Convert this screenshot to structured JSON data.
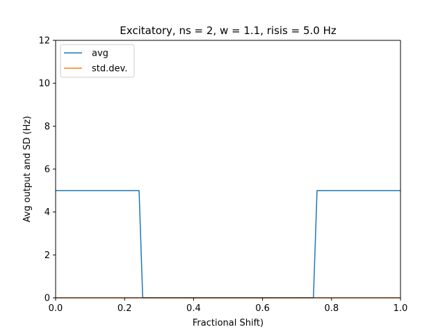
{
  "chart_data": {
    "type": "line",
    "title": "Excitatory, ns = 2, w = 1.1, risis = 5.0 Hz",
    "xlabel": "Fractional Shift)",
    "ylabel": "Avg output and SD (Hz)",
    "xlim": [
      0.0,
      1.0
    ],
    "ylim": [
      0,
      12
    ],
    "xticks": [
      0.0,
      0.2,
      0.4,
      0.6,
      0.8,
      1.0
    ],
    "xtick_labels": [
      "0.0",
      "0.2",
      "0.4",
      "0.6",
      "0.8",
      "1.0"
    ],
    "yticks": [
      0,
      2,
      4,
      6,
      8,
      10,
      12
    ],
    "ytick_labels": [
      "0",
      "2",
      "4",
      "6",
      "8",
      "10",
      "12"
    ],
    "grid": false,
    "legend_position": "upper-left",
    "series": [
      {
        "name": "avg",
        "color": "#1f77b4",
        "x": [
          0.0,
          0.242,
          0.2525,
          0.7475,
          0.758,
          1.0
        ],
        "y": [
          5.0,
          5.0,
          0.0,
          0.0,
          5.0,
          5.0
        ]
      },
      {
        "name": "std.dev.",
        "color": "#ff7f0e",
        "x": [
          0.0,
          1.0
        ],
        "y": [
          0.0,
          0.0
        ]
      }
    ]
  }
}
